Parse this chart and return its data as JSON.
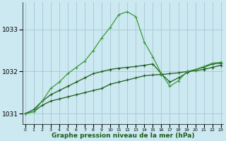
{
  "title": "Graphe pression niveau de la mer (hPa)",
  "background_color": "#cce8f0",
  "grid_color": "#aaccd8",
  "line_color_dark": "#1a5c1a",
  "line_color_light": "#3a9a3a",
  "hours": [
    0,
    1,
    2,
    3,
    4,
    5,
    6,
    7,
    8,
    9,
    10,
    11,
    12,
    13,
    14,
    15,
    16,
    17,
    18,
    19,
    20,
    21,
    22,
    23
  ],
  "pressure_flat": [
    1031.0,
    1031.05,
    1031.2,
    1031.3,
    1031.35,
    1031.4,
    1031.45,
    1031.5,
    1031.55,
    1031.6,
    1031.7,
    1031.75,
    1031.8,
    1031.85,
    1031.9,
    1031.92,
    1031.93,
    1031.95,
    1031.97,
    1032.0,
    1032.02,
    1032.05,
    1032.1,
    1032.15
  ],
  "pressure_mid": [
    1031.0,
    1031.1,
    1031.3,
    1031.45,
    1031.55,
    1031.65,
    1031.75,
    1031.85,
    1031.95,
    1032.0,
    1032.05,
    1032.08,
    1032.1,
    1032.12,
    1032.15,
    1032.18,
    1031.95,
    1031.75,
    1031.85,
    1031.97,
    1032.05,
    1032.1,
    1032.18,
    1032.2
  ],
  "pressure_spike": [
    1031.0,
    1031.05,
    1031.3,
    1031.6,
    1031.75,
    1031.95,
    1032.1,
    1032.25,
    1032.5,
    1032.8,
    1033.05,
    1033.35,
    1033.42,
    1033.3,
    1032.7,
    1032.35,
    1031.95,
    1031.65,
    1031.78,
    1032.0,
    1032.05,
    1032.12,
    1032.2,
    1032.22
  ],
  "ylim_min": 1030.75,
  "ylim_max": 1033.65,
  "yticks": [
    1031,
    1032,
    1033
  ],
  "xticks": [
    0,
    1,
    2,
    3,
    4,
    5,
    6,
    7,
    8,
    9,
    10,
    11,
    12,
    13,
    14,
    15,
    16,
    17,
    18,
    19,
    20,
    21,
    22,
    23
  ]
}
